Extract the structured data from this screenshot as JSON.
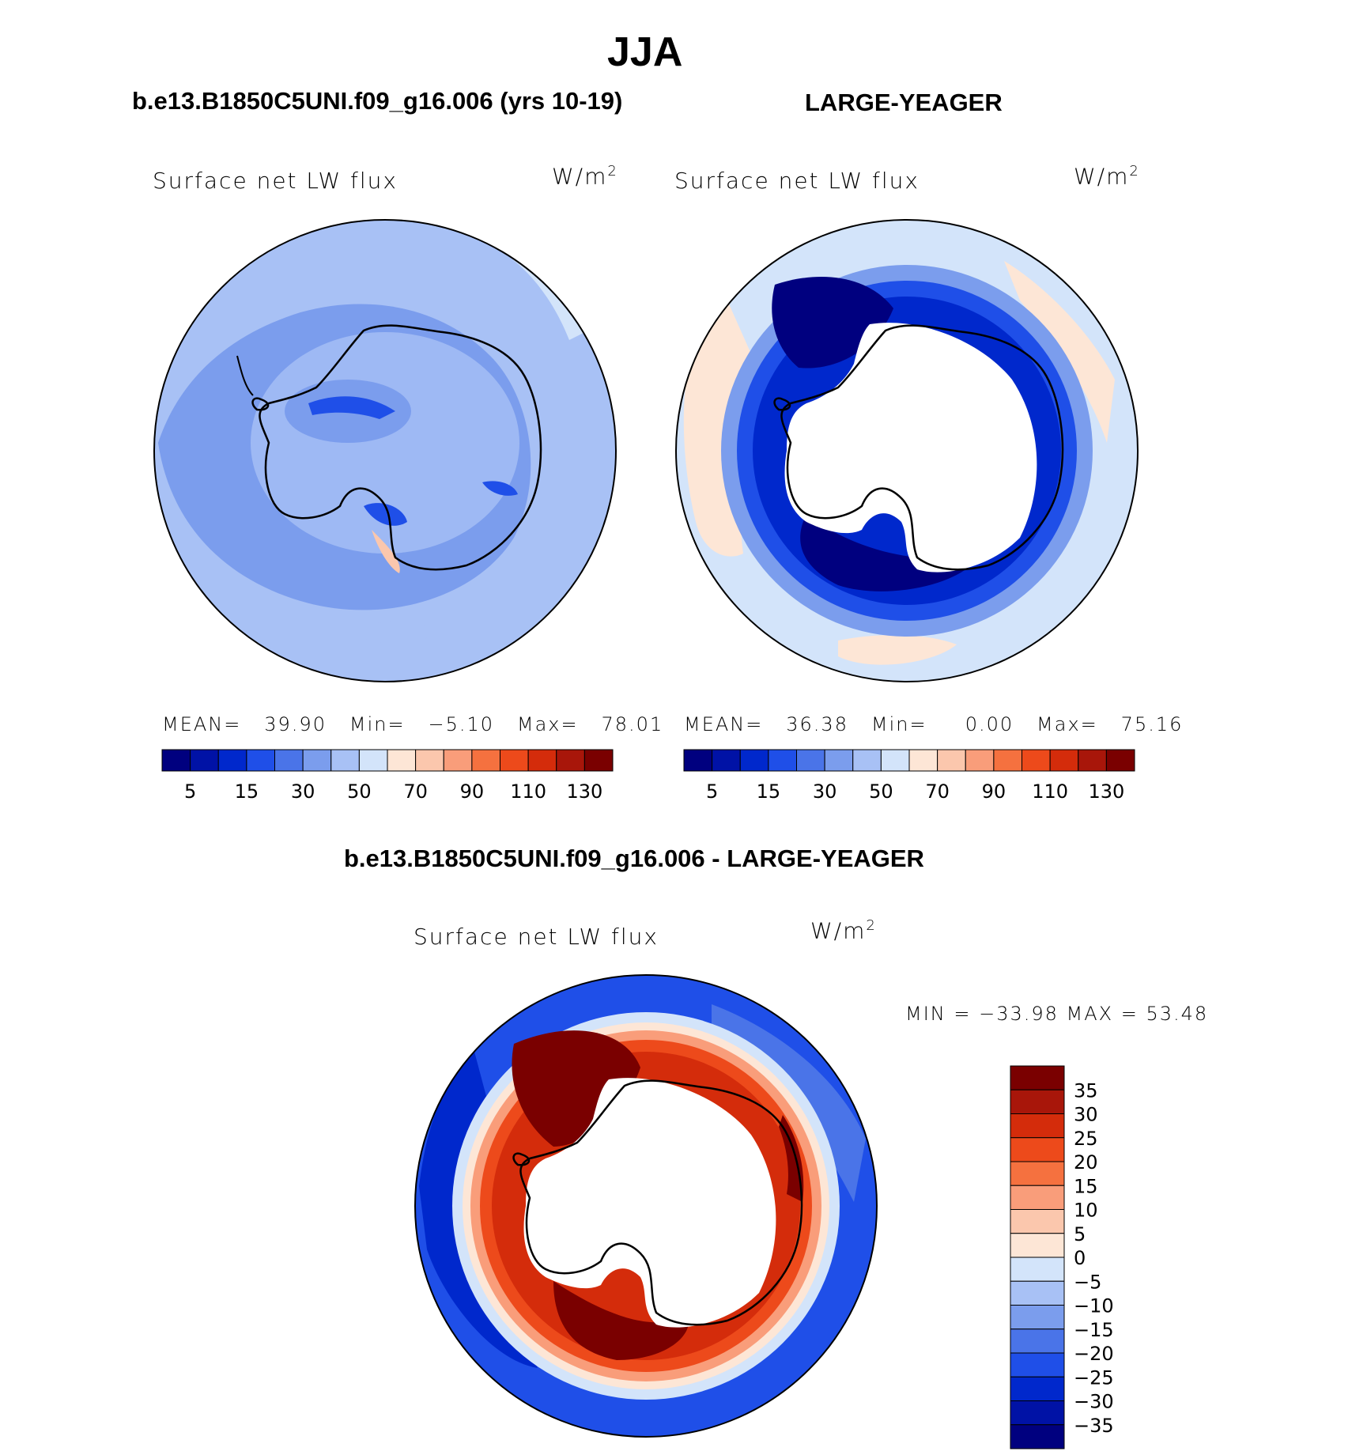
{
  "season": "JJA",
  "panels": [
    {
      "case_title": "b.e13.B1850C5UNI.f09_g16.006 (yrs 10-19)",
      "variable": "Surface net LW flux",
      "units": "W/m",
      "units_exp": "2",
      "stats_mean_label": "MEAN=",
      "stats_mean": "39.90",
      "stats_min_label": "Min=",
      "stats_min": "−5.10",
      "stats_max_label": "Max=",
      "stats_max": "78.01"
    },
    {
      "case_title": "LARGE-YEAGER",
      "variable": "Surface net LW flux",
      "units": "W/m",
      "units_exp": "2",
      "stats_mean_label": "MEAN=",
      "stats_mean": "36.38",
      "stats_min_label": "Min=",
      "stats_min": "0.00",
      "stats_max_label": "Max=",
      "stats_max": "75.16"
    }
  ],
  "diff_panel": {
    "case_title": "b.e13.B1850C5UNI.f09_g16.006 - LARGE-YEAGER",
    "variable": "Surface net LW flux",
    "units": "W/m",
    "units_exp": "2",
    "minmax": "MIN = −33.98 MAX =   53.48"
  },
  "colorbar_main": {
    "colors": [
      "#00007f",
      "#0012a6",
      "#0028cc",
      "#1f4fe8",
      "#4a74e8",
      "#7b9ded",
      "#a8c1f5",
      "#d3e4fa",
      "#fde6d6",
      "#fbc7ad",
      "#f99d7a",
      "#f5713f",
      "#ed4a1b",
      "#d42c0b",
      "#a8160a",
      "#7a0000"
    ],
    "tick_labels": [
      "5",
      "15",
      "30",
      "50",
      "70",
      "90",
      "110",
      "130"
    ]
  },
  "colorbar_diff": {
    "colors": [
      "#7a0000",
      "#a8160a",
      "#d42c0b",
      "#ed4a1b",
      "#f5713f",
      "#f99d7a",
      "#fbc7ad",
      "#fde6d6",
      "#d3e4fa",
      "#a8c1f5",
      "#7b9ded",
      "#4a74e8",
      "#1f4fe8",
      "#0028cc",
      "#0012a6",
      "#00007f"
    ],
    "tick_labels": [
      "35",
      "30",
      "25",
      "20",
      "15",
      "10",
      "5",
      "0",
      "−5",
      "−10",
      "−15",
      "−20",
      "−25",
      "−30",
      "−35"
    ]
  }
}
